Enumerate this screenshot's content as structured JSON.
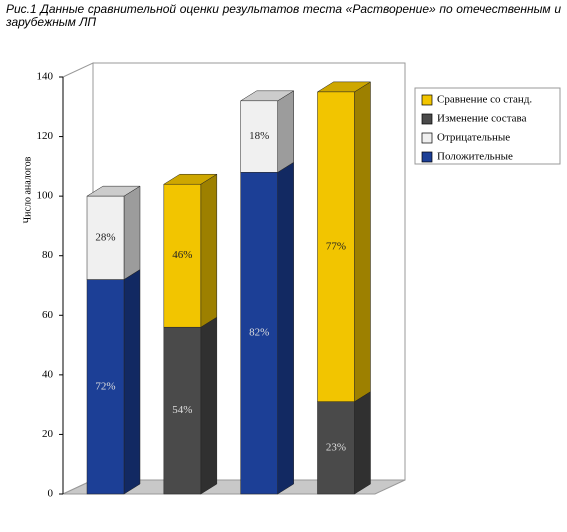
{
  "chart_data": {
    "type": "bar3d-stacked",
    "title": "Рис.1 Данные сравнительной оценки результатов теста «Растворение» по отечественным и зарубежным ЛП",
    "y_label": "Число аналогов",
    "categories": [
      null,
      null,
      null,
      null
    ],
    "series": [
      {
        "name": "Положительные",
        "color": "#1c3f96",
        "values": [
          72,
          null,
          108,
          null
        ],
        "labels": [
          "72%",
          null,
          "82%",
          null
        ]
      },
      {
        "name": "Отрицательные",
        "color": "#f0f0f0",
        "values": [
          28,
          null,
          24,
          null
        ],
        "labels": [
          "28%",
          null,
          "18%",
          null
        ]
      },
      {
        "name": "Изменение состава",
        "color": "#4a4a4a",
        "values": [
          null,
          56,
          null,
          31
        ],
        "labels": [
          null,
          "54%",
          null,
          "23%"
        ]
      },
      {
        "name": "Сравнение со станд.",
        "color": "#f2c500",
        "values": [
          null,
          48,
          null,
          104
        ],
        "labels": [
          null,
          "46%",
          null,
          "77%"
        ]
      }
    ],
    "ylim": [
      0,
      140
    ],
    "yticks": [
      0,
      20,
      40,
      60,
      80,
      100,
      120,
      140
    ]
  }
}
